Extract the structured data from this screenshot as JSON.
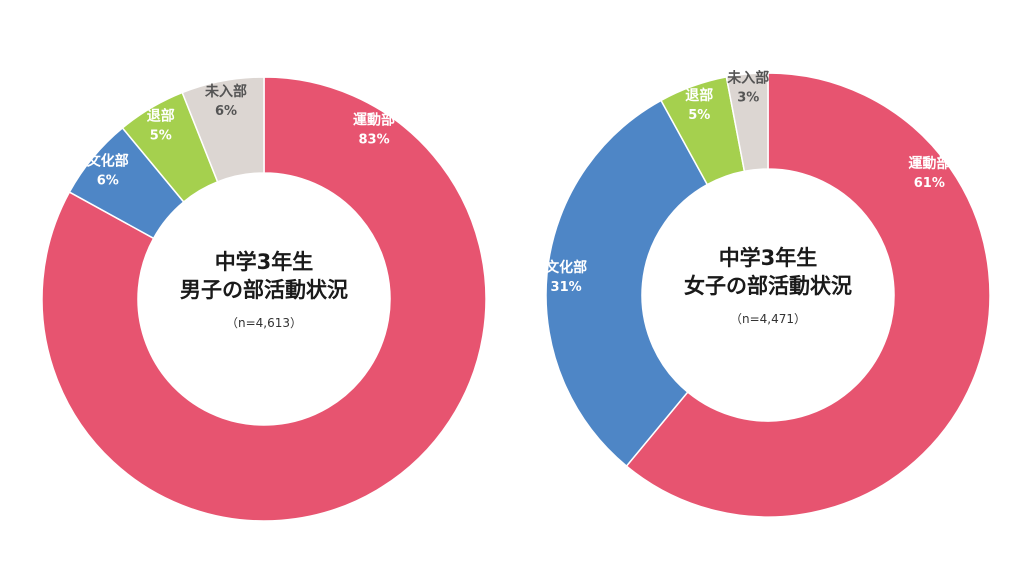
{
  "chart_data": [
    {
      "type": "pie",
      "title_lines": [
        "中学3年生",
        "男子の部活動状況"
      ],
      "note": "（n=4,613）",
      "slices": [
        {
          "label": "運動部",
          "value": 83,
          "display": "83%",
          "color": "#e75470",
          "text_color": "#ffffff"
        },
        {
          "label": "文化部",
          "value": 6,
          "display": "6%",
          "color": "#4e86c6",
          "text_color": "#ffffff"
        },
        {
          "label": "退部",
          "value": 5,
          "display": "5%",
          "color": "#a5d04e",
          "text_color": "#ffffff"
        },
        {
          "label": "未入部",
          "value": 6,
          "display": "6%",
          "color": "#dcd6d2",
          "text_color": "#555555"
        }
      ]
    },
    {
      "type": "pie",
      "title_lines": [
        "中学3年生",
        "女子の部活動状況"
      ],
      "note": "（n=4,471）",
      "slices": [
        {
          "label": "運動部",
          "value": 61,
          "display": "61%",
          "color": "#e75470",
          "text_color": "#ffffff"
        },
        {
          "label": "文化部",
          "value": 31,
          "display": "31%",
          "color": "#4e86c6",
          "text_color": "#ffffff"
        },
        {
          "label": "退部",
          "value": 5,
          "display": "5%",
          "color": "#a5d04e",
          "text_color": "#ffffff"
        },
        {
          "label": "未入部",
          "value": 3,
          "display": "3%",
          "color": "#dcd6d2",
          "text_color": "#555555"
        }
      ]
    }
  ]
}
